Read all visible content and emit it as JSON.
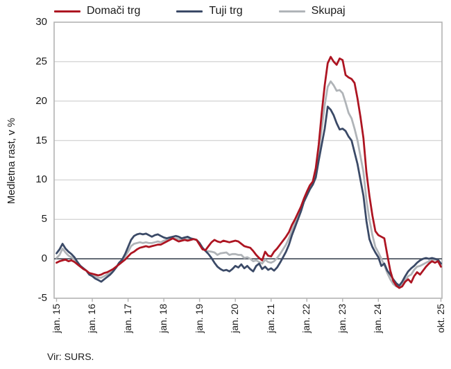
{
  "chart_data": {
    "type": "line",
    "title": "",
    "ylabel": "Medletna rast, v %",
    "source": "Vir: SURS.",
    "ylim": [
      -5,
      30
    ],
    "y_ticks": [
      30,
      25,
      20,
      15,
      10,
      5,
      0,
      -5
    ],
    "x_unit": "monthly, jan. 2015 – okt. 2025",
    "x_tick_labels": [
      "jan. 15",
      "jan. 16",
      "jan. 17",
      "jan. 18",
      "jan. 19",
      "jan. 20",
      "jan. 21",
      "jan. 22",
      "jan. 23",
      "jan. 24",
      "okt. 25"
    ],
    "x_tick_indices": [
      0,
      12,
      24,
      36,
      48,
      60,
      72,
      84,
      96,
      108,
      129
    ],
    "grid": "horizontal",
    "legend_position": "top",
    "colors": {
      "axis_border": "#b3b3b3",
      "gridline": "#d6d6d6",
      "zero_line": "#4d5560",
      "text": "#1a1a1a"
    },
    "series": [
      {
        "name": "Domači trg",
        "color": "#ad1522",
        "values": [
          -0.5,
          -0.3,
          -0.2,
          -0.1,
          -0.3,
          -0.2,
          -0.4,
          -0.7,
          -1.0,
          -1.3,
          -1.5,
          -1.8,
          -1.9,
          -2.0,
          -2.1,
          -2.0,
          -1.8,
          -1.7,
          -1.5,
          -1.3,
          -1.0,
          -0.7,
          -0.4,
          -0.1,
          0.3,
          0.7,
          0.9,
          1.2,
          1.4,
          1.5,
          1.6,
          1.5,
          1.6,
          1.7,
          1.8,
          1.8,
          2.0,
          2.2,
          2.4,
          2.6,
          2.4,
          2.2,
          2.3,
          2.4,
          2.3,
          2.4,
          2.5,
          2.4,
          1.8,
          1.2,
          1.1,
          1.6,
          2.1,
          2.4,
          2.2,
          2.1,
          2.3,
          2.2,
          2.1,
          2.2,
          2.3,
          2.2,
          1.9,
          1.6,
          1.5,
          1.4,
          1.0,
          0.5,
          0.1,
          -0.2,
          0.9,
          0.4,
          0.3,
          0.9,
          1.3,
          1.8,
          2.3,
          2.8,
          3.4,
          4.3,
          5.0,
          5.8,
          6.6,
          7.6,
          8.5,
          9.3,
          9.8,
          11.5,
          14.5,
          18.5,
          22.0,
          24.8,
          25.6,
          25.0,
          24.6,
          25.4,
          25.2,
          23.3,
          23.0,
          22.8,
          22.3,
          20.3,
          18.0,
          15.3,
          11.0,
          8.0,
          5.5,
          3.5,
          3.0,
          2.8,
          2.6,
          0.5,
          -1.5,
          -2.8,
          -3.4,
          -3.7,
          -3.5,
          -2.9,
          -2.6,
          -3.0,
          -2.2,
          -1.7,
          -2.0,
          -1.5,
          -1.0,
          -0.6,
          -0.3,
          -0.5,
          -0.3,
          -1.0
        ]
      },
      {
        "name": "Tuji trg",
        "color": "#3b4a67",
        "values": [
          0.7,
          1.2,
          1.9,
          1.3,
          0.9,
          0.6,
          0.2,
          -0.4,
          -0.9,
          -1.2,
          -1.5,
          -2.0,
          -2.2,
          -2.5,
          -2.7,
          -2.9,
          -2.6,
          -2.3,
          -2.0,
          -1.6,
          -1.1,
          -0.5,
          -0.1,
          0.6,
          1.5,
          2.4,
          2.9,
          3.1,
          3.2,
          3.1,
          3.2,
          3.0,
          2.8,
          3.0,
          3.1,
          2.9,
          2.7,
          2.6,
          2.7,
          2.8,
          2.9,
          2.8,
          2.6,
          2.7,
          2.8,
          2.6,
          2.5,
          2.4,
          2.0,
          1.4,
          1.0,
          0.6,
          0.1,
          -0.5,
          -1.0,
          -1.3,
          -1.5,
          -1.4,
          -1.6,
          -1.3,
          -0.9,
          -1.1,
          -0.7,
          -1.2,
          -0.9,
          -1.3,
          -1.6,
          -0.9,
          -0.6,
          -1.3,
          -1.0,
          -1.4,
          -1.2,
          -1.5,
          -1.1,
          -0.5,
          0.2,
          0.9,
          1.8,
          3.0,
          4.0,
          5.0,
          6.0,
          7.2,
          8.0,
          8.8,
          9.4,
          10.3,
          12.5,
          14.5,
          16.5,
          19.3,
          18.9,
          18.2,
          17.2,
          16.4,
          16.5,
          16.2,
          15.5,
          15.0,
          13.5,
          12.0,
          10.0,
          8.0,
          4.8,
          2.5,
          1.5,
          0.8,
          0.2,
          -0.9,
          -0.6,
          -1.5,
          -2.0,
          -2.6,
          -3.1,
          -3.4,
          -2.9,
          -2.2,
          -1.6,
          -1.2,
          -0.9,
          -0.5,
          -0.2,
          0.0,
          0.1,
          0.0,
          0.1,
          0.0,
          -0.1,
          -0.6
        ]
      },
      {
        "name": "Skupaj",
        "color": "#b0b4b8",
        "values": [
          0.1,
          0.5,
          1.3,
          0.8,
          0.4,
          0.2,
          -0.1,
          -0.5,
          -0.9,
          -1.2,
          -1.5,
          -1.9,
          -2.0,
          -2.2,
          -2.4,
          -2.4,
          -2.2,
          -2.0,
          -1.8,
          -1.5,
          -1.1,
          -0.6,
          -0.2,
          0.3,
          0.9,
          1.6,
          1.9,
          2.0,
          2.1,
          2.0,
          2.1,
          2.0,
          2.0,
          2.1,
          2.2,
          2.1,
          2.3,
          2.4,
          2.5,
          2.6,
          2.6,
          2.5,
          2.4,
          2.5,
          2.5,
          2.5,
          2.5,
          2.4,
          1.9,
          1.3,
          1.0,
          0.95,
          0.9,
          0.8,
          0.5,
          0.7,
          0.75,
          0.8,
          0.5,
          0.6,
          0.6,
          0.5,
          0.5,
          0.1,
          0.2,
          0.0,
          -0.3,
          -0.2,
          -0.4,
          -0.6,
          -0.1,
          -0.4,
          -0.5,
          -0.3,
          0.1,
          0.6,
          1.2,
          1.8,
          2.6,
          3.6,
          4.5,
          5.3,
          6.2,
          7.3,
          8.2,
          9.0,
          9.6,
          10.8,
          13.5,
          16.5,
          19.5,
          21.8,
          22.5,
          22.0,
          21.3,
          21.4,
          21.0,
          19.8,
          18.5,
          17.8,
          16.5,
          15.0,
          13.0,
          11.0,
          7.5,
          5.0,
          3.0,
          1.5,
          0.8,
          0.0,
          -0.8,
          -1.8,
          -2.6,
          -3.2,
          -3.5,
          -3.6,
          -3.3,
          -2.7,
          -2.2,
          -2.0,
          -1.4,
          -1.0,
          -0.9,
          -0.7,
          -0.5,
          -0.3,
          -0.2,
          -0.1,
          -0.2,
          -0.8
        ]
      }
    ]
  }
}
